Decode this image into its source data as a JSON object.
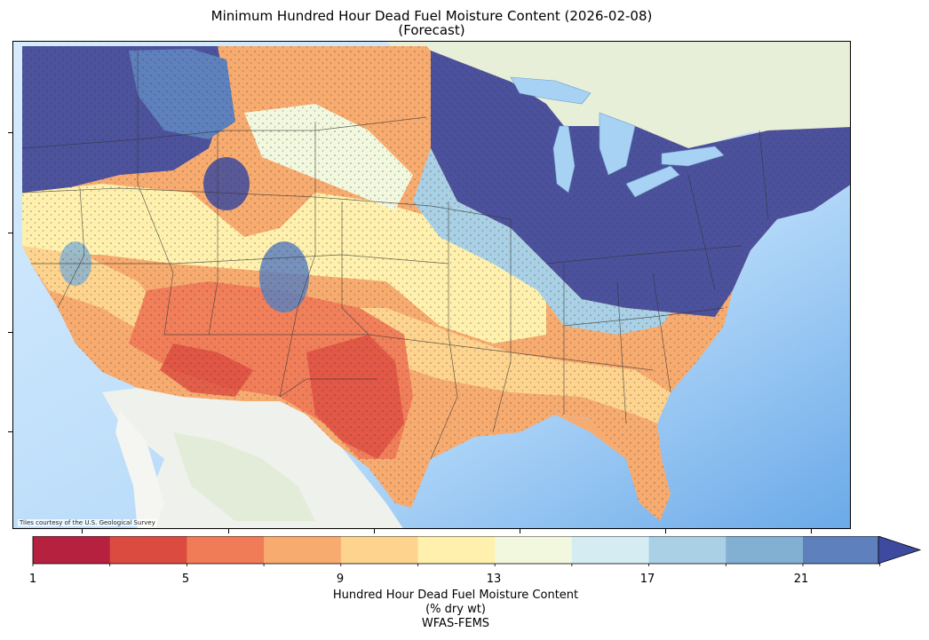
{
  "title": {
    "line1": "Minimum Hundred Hour Dead Fuel Moisture Content (2026-02-08)",
    "line2": "(Forecast)"
  },
  "map": {
    "attribution": "Tiles courtesy of the U.S. Geological Survey"
  },
  "colorbar": {
    "ticks": [
      "1",
      "5",
      "9",
      "13",
      "17",
      "21"
    ],
    "label_line1": "Hundred Hour Dead Fuel Moisture Content",
    "label_line2": "(% dry wt)",
    "label_line3": "WFAS-FEMS",
    "bins": [
      {
        "color": "#b5213f"
      },
      {
        "color": "#dc4b3f"
      },
      {
        "color": "#f07b57"
      },
      {
        "color": "#f8ab6f"
      },
      {
        "color": "#fdd38e"
      },
      {
        "color": "#fff1ad"
      },
      {
        "color": "#f2f8de"
      },
      {
        "color": "#d6ecf3"
      },
      {
        "color": "#a9d0e4"
      },
      {
        "color": "#82b0d2"
      },
      {
        "color": "#5e80bd"
      }
    ],
    "extend_color": "#3e4aa0"
  }
}
